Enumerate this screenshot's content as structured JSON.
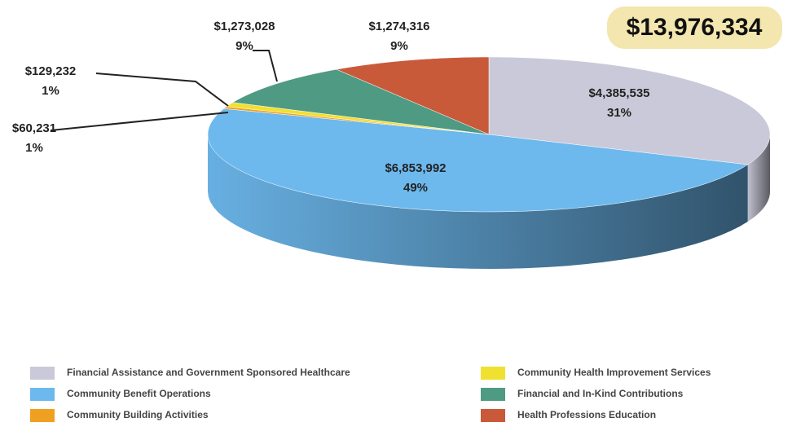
{
  "chart_data": {
    "type": "pie3d",
    "total_label": "$13,976,334",
    "categories": [
      "Financial Assistance and Government Sponsored Healthcare",
      "Community Benefit Operations",
      "Community Building Activities",
      "Community Health Improvement Services",
      "Financial and In-Kind Contributions",
      "Health Professions Education"
    ],
    "values": [
      4385535,
      6853992,
      60231,
      129232,
      1273028,
      1274316
    ],
    "value_labels": [
      "$4,385,535",
      "$6,853,992",
      "$60,231",
      "$129,232",
      "$1,273,028",
      "$1,274,316"
    ],
    "percent_labels": [
      "31%",
      "49%",
      "1%",
      "1%",
      "9%",
      "9%"
    ],
    "colors": [
      "#c9c9d9",
      "#6db9ee",
      "#f0a020",
      "#f0e030",
      "#4f9a82",
      "#c85a3a"
    ]
  }
}
